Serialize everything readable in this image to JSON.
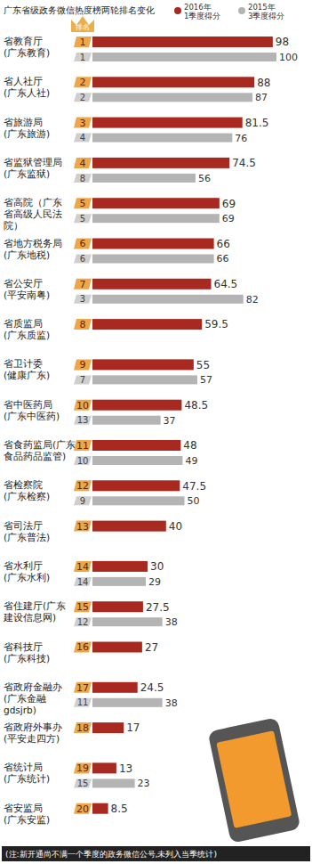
{
  "chart_data": {
    "type": "bar",
    "orientation": "horizontal",
    "title": "广东省级政务微信热度榜两轮排名变化",
    "rank_header": "排名",
    "note": "(注:新开通尚不满一个季度的政务微信公号,未列入当季统计)",
    "categories": [
      "省教育厅\n(广东教育)",
      "省人社厅\n(广东人社)",
      "省旅游局\n(广东旅游)",
      "省监狱管理局\n(广东监狱)",
      "省高院（广东\n省高级人民法\n院）",
      "省地方税务局\n(广东地税)",
      "省公安厅\n(平安南粤)",
      "省质监局\n(广东质监)",
      "省卫计委\n(健康广东)",
      "省中医药局\n(广东中医药)",
      "省食药监局(广东\n食品药品监管)",
      "省检察院\n(广东检察)",
      "省司法厅\n(广东普法)",
      "省水利厅\n(广东水利)",
      "省住建厅(广东\n建设信息网)",
      "省科技厅\n(广东科技)",
      "省政府金融办\n(广东金融\ngdsjrb)",
      "省政府外事办\n(平安走四方)",
      "省统计局\n(广东统计)",
      "省安监局\n(广东安监)"
    ],
    "series": [
      {
        "name": "2016年\n1季度得分",
        "color": "#a8291f",
        "values": [
          98,
          88,
          81.5,
          74.5,
          69,
          66,
          64.5,
          59.5,
          55,
          48.5,
          48,
          47.5,
          40,
          30,
          27.5,
          27,
          24.5,
          17,
          13,
          8.5
        ],
        "ranks": [
          1,
          2,
          3,
          4,
          5,
          6,
          7,
          8,
          9,
          10,
          11,
          12,
          13,
          14,
          15,
          16,
          17,
          18,
          19,
          20
        ]
      },
      {
        "name": "2015年\n3季度得分",
        "color": "#b4b4b4",
        "values": [
          100,
          87,
          76,
          56,
          69,
          66,
          82,
          null,
          57,
          37,
          49,
          50,
          null,
          29,
          38,
          null,
          38,
          null,
          23,
          null
        ],
        "ranks": [
          1,
          2,
          4,
          8,
          5,
          6,
          3,
          null,
          7,
          13,
          10,
          9,
          null,
          14,
          12,
          null,
          11,
          null,
          15,
          null
        ]
      }
    ],
    "xlim": [
      0,
      100
    ],
    "tick_labels": false,
    "grid": false,
    "data_labels": true,
    "legend": "top-right"
  }
}
